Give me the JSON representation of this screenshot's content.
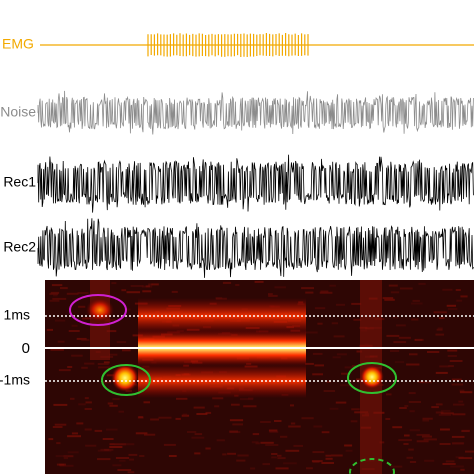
{
  "traces": [
    {
      "label": "EMG",
      "color": "#f2a900"
    },
    {
      "label": "Noise",
      "color": "#8c8c8c"
    },
    {
      "label": "Rec1",
      "color": "#000000"
    },
    {
      "label": "Rec2",
      "color": "#000000"
    }
  ],
  "heatmap": {
    "labels": [
      "1ms",
      "0",
      "-1ms"
    ]
  }
}
